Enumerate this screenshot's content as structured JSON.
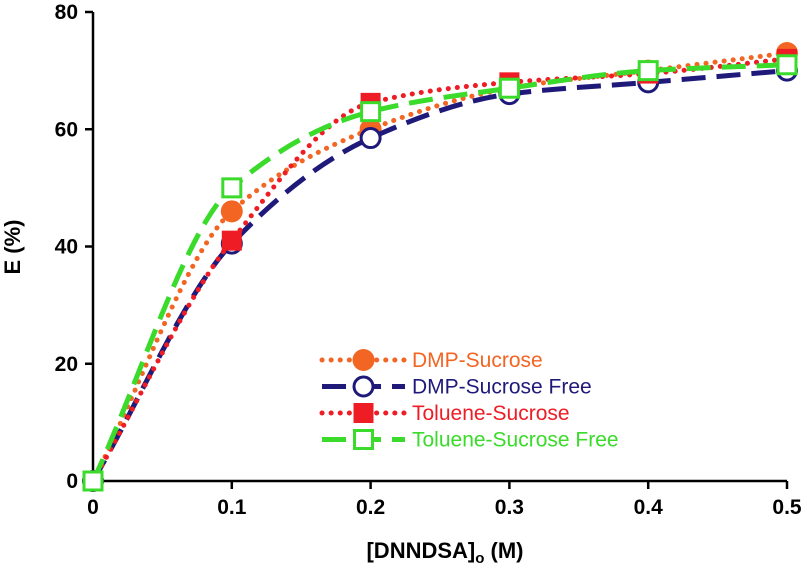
{
  "chart_data": {
    "type": "line",
    "title": "",
    "xlabel_main": "[DNNDSA]",
    "xlabel_sub": "o",
    "xlabel_unit": " (M)",
    "ylabel": "E (%)",
    "xlim": [
      0,
      0.5
    ],
    "ylim": [
      0,
      80
    ],
    "x": [
      0,
      0.1,
      0.2,
      0.3,
      0.4,
      0.5
    ],
    "x_tick_labels": [
      "0",
      "0.1",
      "0.2",
      "0.3",
      "0.4",
      "0.5"
    ],
    "y_ticks": [
      0,
      20,
      40,
      60,
      80
    ],
    "y_tick_labels": [
      "0",
      "20",
      "40",
      "60",
      "80"
    ],
    "grid": false,
    "legend_position": "bottom-right",
    "series": [
      {
        "name": "DMP-Sucrose",
        "color": "#F26522",
        "line_style": "dotted",
        "marker": "filled-circle",
        "values": [
          0,
          46,
          60,
          67,
          70,
          73
        ]
      },
      {
        "name": "DMP-Sucrose Free",
        "color": "#1F1A7A",
        "line_style": "dashed",
        "marker": "open-circle",
        "values": [
          0,
          40.5,
          58.5,
          66,
          68,
          70
        ]
      },
      {
        "name": "Toluene-Sucrose",
        "color": "#EE1C24",
        "line_style": "dotted",
        "marker": "filled-square",
        "values": [
          0,
          41,
          64.5,
          68,
          69.5,
          72
        ]
      },
      {
        "name": "Toluene-Sucrose Free",
        "color": "#3ADB2A",
        "line_style": "dashed",
        "marker": "open-square",
        "values": [
          0,
          50,
          63,
          67,
          70,
          71
        ]
      }
    ]
  }
}
